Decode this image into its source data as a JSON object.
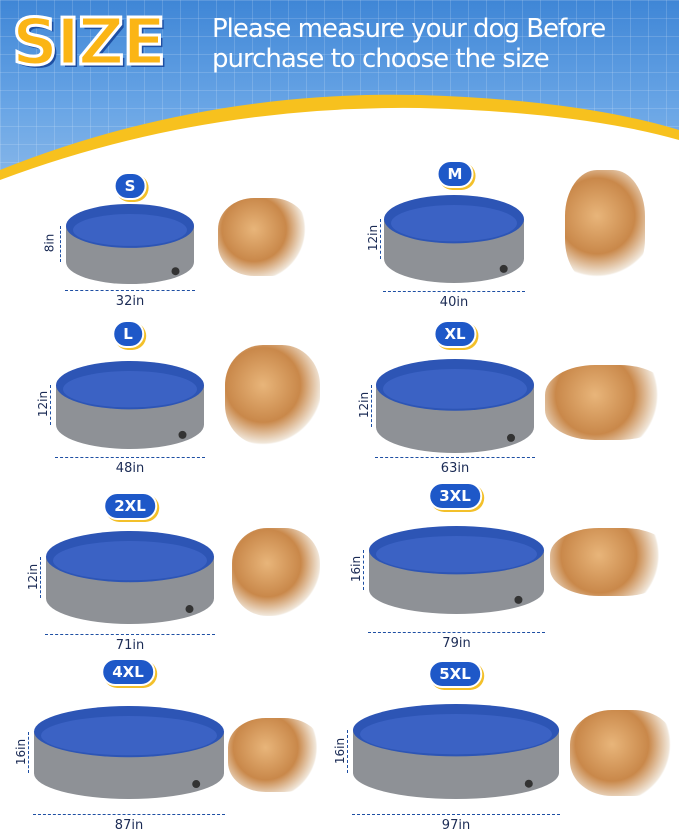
{
  "header": {
    "title": "SIZE",
    "subtitle": "Please measure your dog Before purchase to choose the size"
  },
  "colors": {
    "badge": "#1e58c8",
    "pool_inner": "#3b62c4",
    "pool_outer": "#8e9196",
    "accent": "#fbb515"
  },
  "sizes": [
    {
      "label": "S",
      "height": "8in",
      "diameter": "32in"
    },
    {
      "label": "M",
      "height": "12in",
      "diameter": "40in"
    },
    {
      "label": "L",
      "height": "12in",
      "diameter": "48in"
    },
    {
      "label": "XL",
      "height": "12in",
      "diameter": "63in"
    },
    {
      "label": "2XL",
      "height": "12in",
      "diameter": "71in"
    },
    {
      "label": "3XL",
      "height": "16in",
      "diameter": "79in"
    },
    {
      "label": "4XL",
      "height": "16in",
      "diameter": "87in"
    },
    {
      "label": "5XL",
      "height": "16in",
      "diameter": "97in"
    }
  ]
}
